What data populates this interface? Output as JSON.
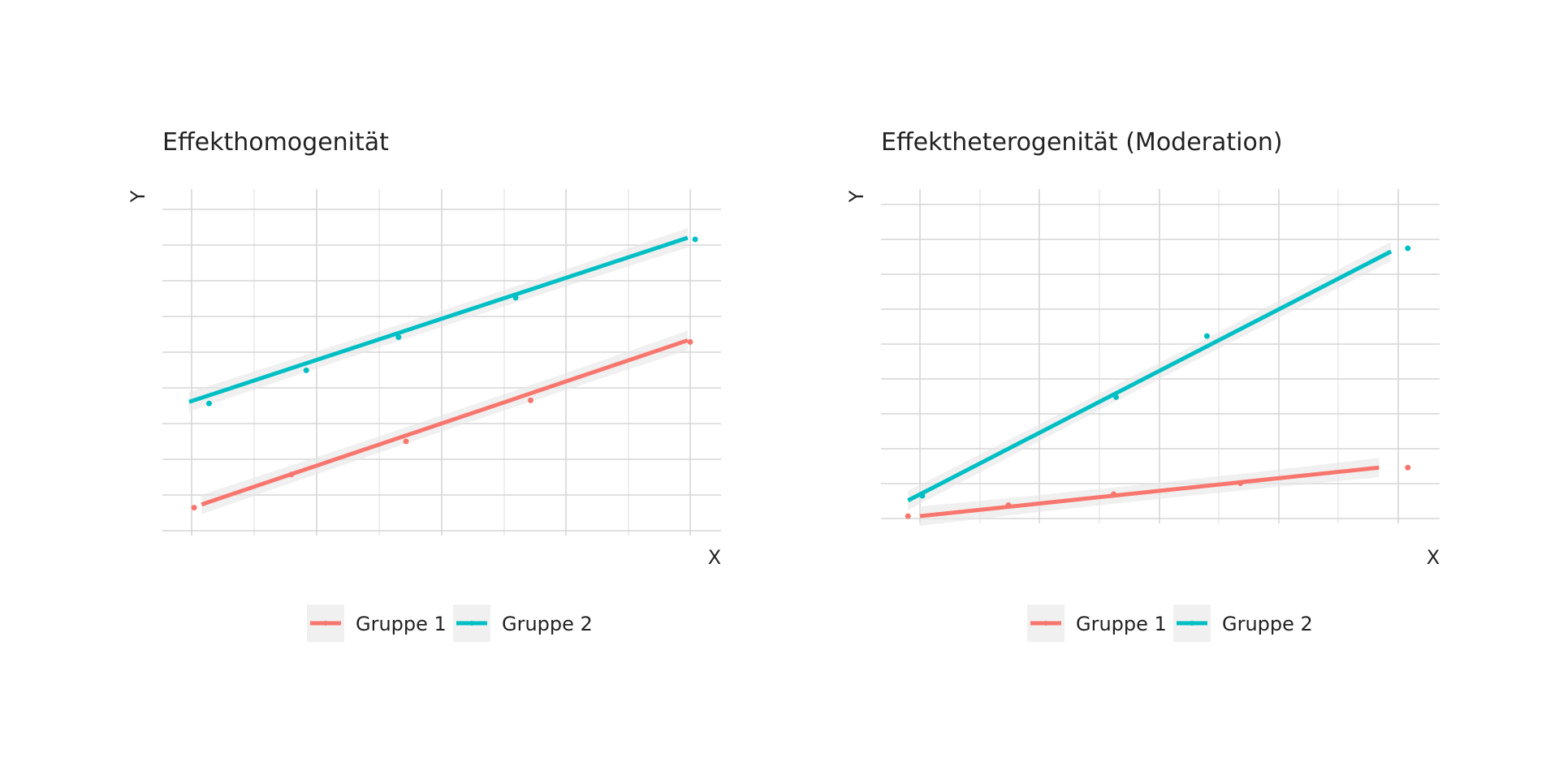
{
  "chart_data": [
    {
      "type": "scatter",
      "title": "Effekthomogenität",
      "xlabel": "X",
      "ylabel": "Y",
      "xlim": [
        0,
        10
      ],
      "ylim": [
        0,
        10
      ],
      "grid": true,
      "legend_position": "bottom",
      "series": [
        {
          "name": "Gruppe 1",
          "color": "#F8766D",
          "points": [
            [
              0.05,
              0.55
            ],
            [
              2.0,
              1.6
            ],
            [
              4.3,
              2.65
            ],
            [
              6.8,
              3.95
            ],
            [
              10.0,
              5.8
            ]
          ],
          "fit": [
            [
              0.2,
              0.65
            ],
            [
              9.95,
              5.85
            ]
          ]
        },
        {
          "name": "Gruppe 2",
          "color": "#00BFC4",
          "points": [
            [
              0.35,
              3.85
            ],
            [
              2.3,
              4.9
            ],
            [
              4.15,
              5.95
            ],
            [
              6.5,
              7.2
            ],
            [
              10.1,
              9.05
            ]
          ],
          "fit": [
            [
              -0.05,
              3.9
            ],
            [
              9.95,
              9.1
            ]
          ]
        }
      ]
    },
    {
      "type": "scatter",
      "title": "Effektheterogenität (Moderation)",
      "xlabel": "X",
      "ylabel": "Y",
      "xlim": [
        0,
        10
      ],
      "ylim": [
        0,
        10
      ],
      "grid": true,
      "legend_position": "bottom",
      "series": [
        {
          "name": "Gruppe 1",
          "color": "#F8766D",
          "points": [
            [
              -0.25,
              0.05
            ],
            [
              1.85,
              0.4
            ],
            [
              4.05,
              0.75
            ],
            [
              6.7,
              1.1
            ],
            [
              10.2,
              1.6
            ]
          ],
          "fit": [
            [
              0.0,
              0.05
            ],
            [
              9.6,
              1.6
            ]
          ]
        },
        {
          "name": "Gruppe 2",
          "color": "#00BFC4",
          "points": [
            [
              0.05,
              0.7
            ],
            [
              4.1,
              3.85
            ],
            [
              6.0,
              5.8
            ],
            [
              10.2,
              8.6
            ]
          ],
          "fit": [
            [
              -0.25,
              0.55
            ],
            [
              9.85,
              8.5
            ]
          ]
        }
      ]
    }
  ]
}
